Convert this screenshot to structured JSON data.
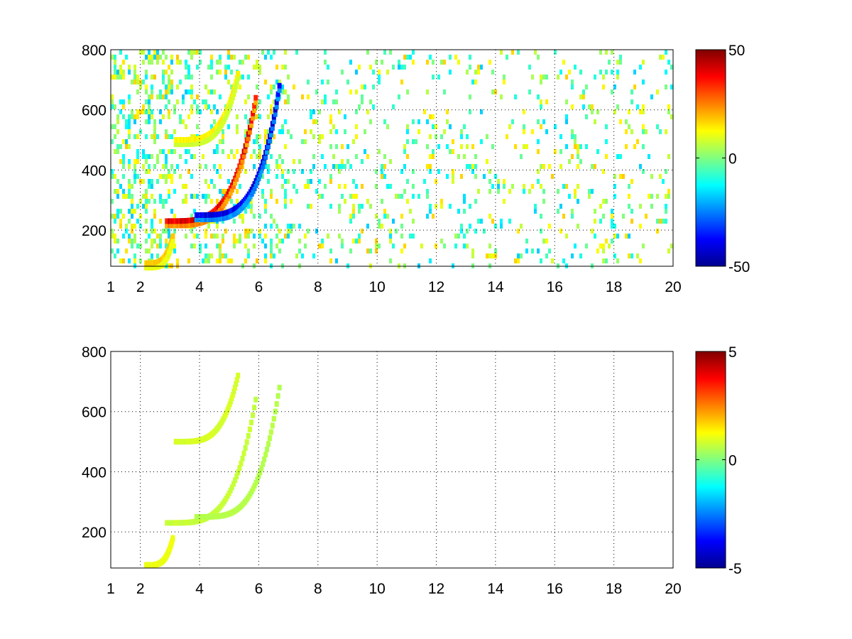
{
  "colors": {
    "background": "#ffffff",
    "axis": "#000000",
    "grid": "#000000",
    "colormap": "jet"
  },
  "chart_data": [
    {
      "type": "heatmap",
      "title": "",
      "xlabel": "",
      "ylabel": "",
      "xlim": [
        1,
        20
      ],
      "ylim": [
        80,
        800
      ],
      "xticks": [
        1,
        2,
        4,
        6,
        8,
        10,
        12,
        14,
        16,
        18,
        20
      ],
      "yticks": [
        200,
        400,
        600,
        800
      ],
      "grid": true,
      "colorbar": {
        "clim": [
          -50,
          50
        ],
        "ticks": [
          -50,
          0,
          50
        ]
      },
      "features": [
        {
          "x0": 2.9,
          "y0": 230,
          "x1": 5.9,
          "y1": 640,
          "value": 45
        },
        {
          "x0": 3.9,
          "y0": 250,
          "x1": 6.7,
          "y1": 680,
          "value": -45
        },
        {
          "x0": 2.2,
          "y0": 90,
          "x1": 3.1,
          "y1": 180,
          "value": 20
        },
        {
          "x0": 3.2,
          "y0": 500,
          "x1": 5.3,
          "y1": 720,
          "value": 15
        }
      ]
    },
    {
      "type": "heatmap",
      "title": "",
      "xlabel": "",
      "ylabel": "",
      "xlim": [
        1,
        20
      ],
      "ylim": [
        80,
        800
      ],
      "xticks": [
        1,
        2,
        4,
        6,
        8,
        10,
        12,
        14,
        16,
        18,
        20
      ],
      "yticks": [
        200,
        400,
        600,
        800
      ],
      "grid": true,
      "colorbar": {
        "clim": [
          -5,
          5
        ],
        "ticks": [
          -5,
          0,
          5
        ]
      },
      "features": [
        {
          "x0": 2.9,
          "y0": 230,
          "x1": 5.9,
          "y1": 640,
          "value": 0.8
        },
        {
          "x0": 3.9,
          "y0": 250,
          "x1": 6.7,
          "y1": 680,
          "value": 0.6
        },
        {
          "x0": 2.2,
          "y0": 90,
          "x1": 3.1,
          "y1": 180,
          "value": 1.2
        },
        {
          "x0": 3.2,
          "y0": 500,
          "x1": 5.3,
          "y1": 720,
          "value": 1.0
        }
      ]
    }
  ]
}
